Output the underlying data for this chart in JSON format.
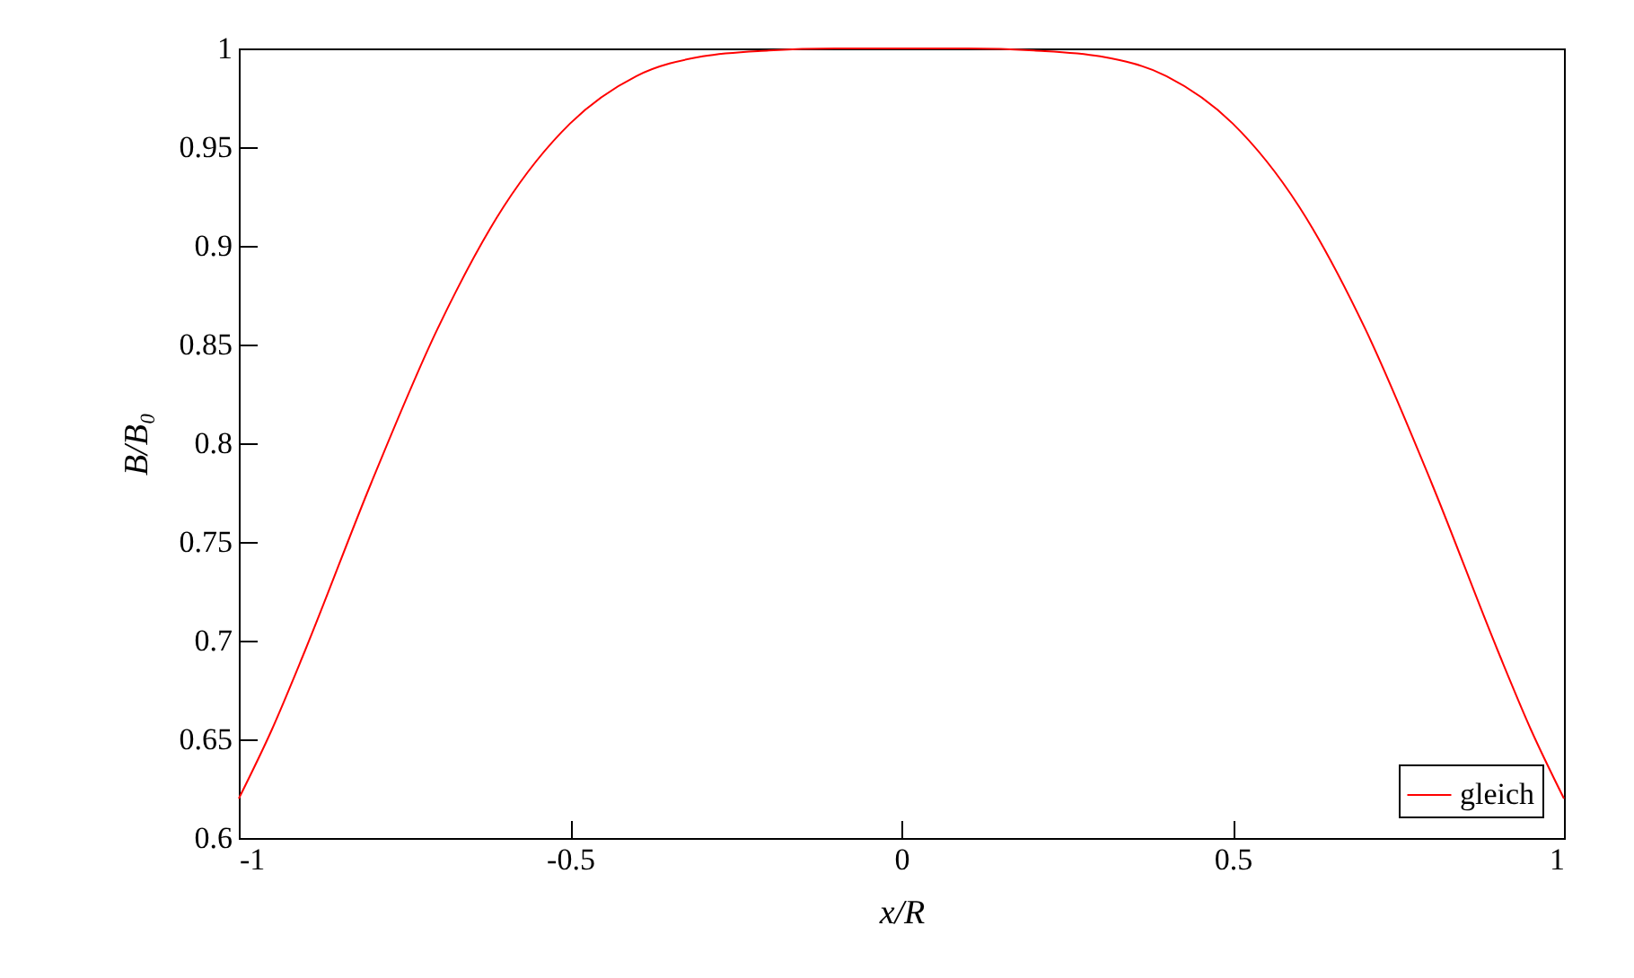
{
  "chart_data": {
    "type": "line",
    "xlabel": "x/R",
    "ylabel": "B/B₀",
    "x": [
      -1,
      -0.95,
      -0.9,
      -0.8,
      -0.7,
      -0.6,
      -0.5,
      -0.4,
      -0.3,
      -0.2,
      -0.1,
      0,
      0.1,
      0.2,
      0.3,
      0.4,
      0.5,
      0.6,
      0.7,
      0.8,
      0.9,
      0.95,
      1
    ],
    "series": [
      {
        "name": "gleich",
        "color": "#ff0000",
        "values": [
          0.62,
          0.655,
          0.695,
          0.78,
          0.858,
          0.92,
          0.962,
          0.986,
          0.996,
          0.999,
          1.0,
          1.0,
          1.0,
          0.999,
          0.996,
          0.986,
          0.962,
          0.92,
          0.858,
          0.78,
          0.695,
          0.655,
          0.62
        ]
      }
    ],
    "xlim": [
      -1,
      1
    ],
    "xticks": [
      -1,
      -0.5,
      0,
      0.5,
      1
    ],
    "ylim": [
      0.6,
      1
    ],
    "yticks": [
      0.6,
      0.65,
      0.7,
      0.75,
      0.8,
      0.85,
      0.9,
      0.95,
      1
    ],
    "grid": false,
    "legend": "bottom right",
    "marker": "none",
    "line_style": "solid"
  }
}
